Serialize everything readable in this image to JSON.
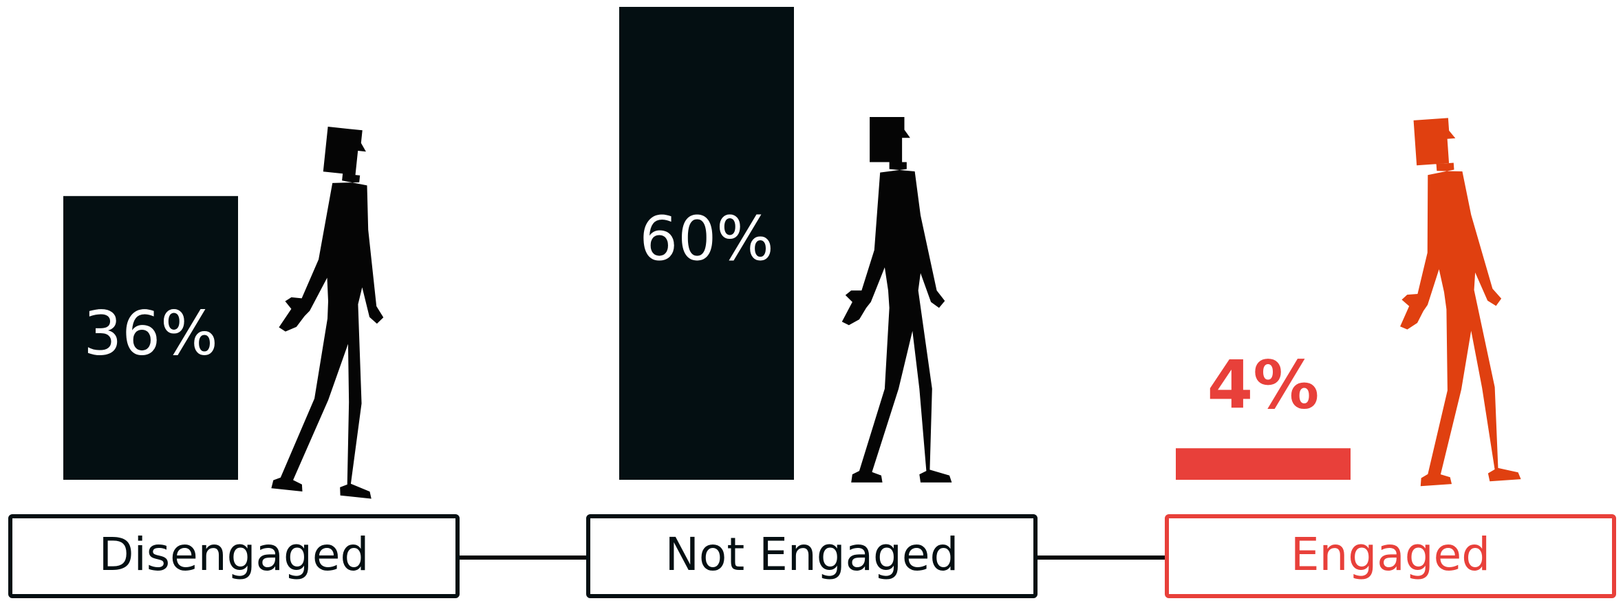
{
  "chart_data": {
    "type": "bar",
    "categories": [
      "Disengaged",
      "Not Engaged",
      "Engaged"
    ],
    "values": [
      36,
      60,
      4
    ],
    "value_labels": [
      "36%",
      "60%",
      "4%"
    ],
    "colors": [
      "#040f12",
      "#040f12",
      "#e8403a"
    ]
  }
}
